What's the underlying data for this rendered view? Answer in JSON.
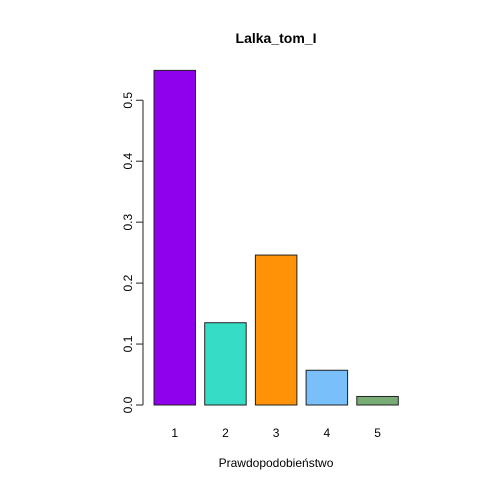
{
  "chart_data": {
    "type": "bar",
    "title": "Lalka_tom_I",
    "xlabel": "Prawdopodobieństwo",
    "ylabel": "",
    "categories": [
      "1",
      "2",
      "3",
      "4",
      "5"
    ],
    "values": [
      0.549,
      0.135,
      0.246,
      0.057,
      0.014
    ],
    "colors": [
      "#8f00ec",
      "#36dcc6",
      "#ff9206",
      "#79c0fa",
      "#77ac74"
    ],
    "ylim": [
      0,
      0.55
    ],
    "yticks": [
      "0.0",
      "0.1",
      "0.2",
      "0.3",
      "0.4",
      "0.5"
    ],
    "grid": false
  }
}
